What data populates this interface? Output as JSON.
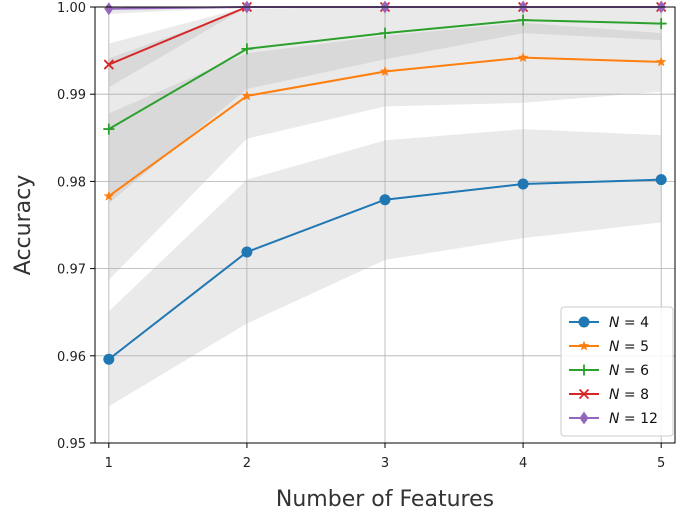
{
  "chart_data": {
    "type": "line",
    "title": "",
    "xlabel": "Number of Features",
    "ylabel": "Accuracy",
    "x": [
      1,
      2,
      3,
      4,
      5
    ],
    "xticks": [
      "1",
      "2",
      "3",
      "4",
      "5"
    ],
    "xlim": [
      0.9,
      5.1
    ],
    "ylim": [
      0.95,
      1.0
    ],
    "yticks": [
      "0.95",
      "0.96",
      "0.97",
      "0.98",
      "0.99",
      "1.00"
    ],
    "grid": true,
    "legend_position": "lower-right",
    "series": [
      {
        "name": "N = 4",
        "legend_var": "N",
        "legend_value": "4",
        "color": "#1f77b4",
        "marker": "circle",
        "values": [
          0.9596,
          0.9719,
          0.9779,
          0.9797,
          0.9802
        ],
        "band_low": [
          0.9542,
          0.9637,
          0.971,
          0.9735,
          0.9753
        ],
        "band_high": [
          0.9651,
          0.9802,
          0.9847,
          0.986,
          0.9853
        ]
      },
      {
        "name": "N = 5",
        "legend_var": "N",
        "legend_value": "5",
        "color": "#ff7f0e",
        "marker": "star",
        "values": [
          0.9783,
          0.9898,
          0.9926,
          0.9942,
          0.9937
        ],
        "band_low": [
          0.9687,
          0.9849,
          0.9886,
          0.989,
          0.9903
        ],
        "band_high": [
          0.9878,
          0.9947,
          0.9967,
          0.9982,
          0.997
        ]
      },
      {
        "name": "N = 6",
        "legend_var": "N",
        "legend_value": "6",
        "color": "#2ca02c",
        "marker": "plus",
        "values": [
          0.986,
          0.9952,
          0.997,
          0.9985,
          0.9981
        ],
        "band_low": [
          0.9775,
          0.9906,
          0.994,
          0.997,
          0.9962
        ],
        "band_high": [
          0.9941,
          0.9998,
          1.0,
          1.0,
          1.0
        ]
      },
      {
        "name": "N = 8",
        "legend_var": "N",
        "legend_value": "8",
        "color": "#d62728",
        "marker": "x",
        "values": [
          0.9934,
          1.0,
          1.0,
          1.0,
          1.0
        ],
        "band_low": [
          0.9908,
          1.0,
          1.0,
          1.0,
          1.0
        ],
        "band_high": [
          0.9958,
          1.0,
          1.0,
          1.0,
          1.0
        ]
      },
      {
        "name": "N = 12",
        "legend_var": "N",
        "legend_value": "12",
        "color": "#9467bd",
        "marker": "diamond",
        "values": [
          0.9998,
          1.0,
          1.0,
          1.0,
          1.0
        ],
        "band_low": [
          0.9992,
          1.0,
          1.0,
          1.0,
          1.0
        ],
        "band_high": [
          1.0,
          1.0,
          1.0,
          1.0,
          1.0
        ]
      }
    ]
  }
}
